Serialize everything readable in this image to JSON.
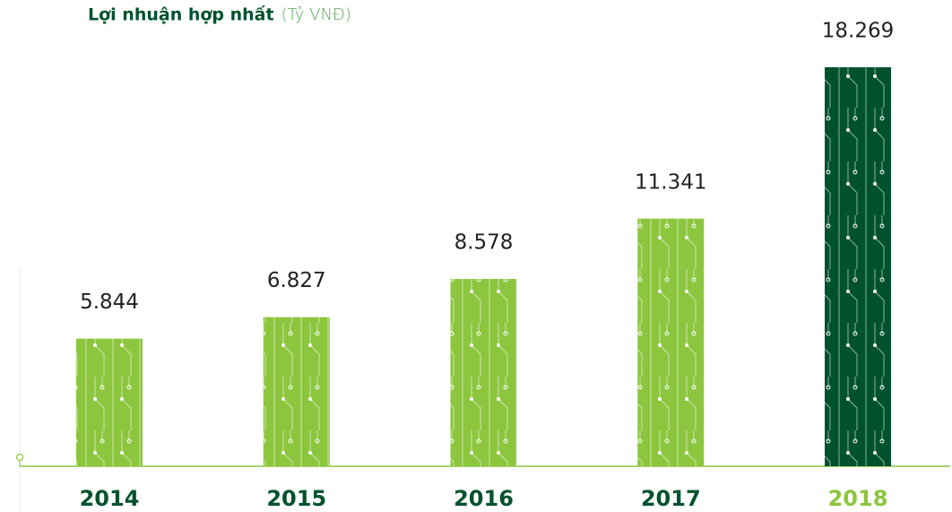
{
  "chart_data": {
    "type": "bar",
    "title": "Lợi nhuận hợp nhất",
    "subtitle": "(Tỷ VNĐ)",
    "categories": [
      "2014",
      "2015",
      "2016",
      "2017",
      "2018"
    ],
    "values": [
      5844,
      6827,
      8578,
      11341,
      18269
    ],
    "value_labels": [
      "5.844",
      "6.827",
      "8.578",
      "11.341",
      "18.269"
    ],
    "colors": [
      "#8cc63f",
      "#8cc63f",
      "#8cc63f",
      "#8cc63f",
      "#00522e"
    ],
    "category_label_colors": [
      "#00522e",
      "#00522e",
      "#00522e",
      "#00522e",
      "#8cc63f"
    ]
  }
}
